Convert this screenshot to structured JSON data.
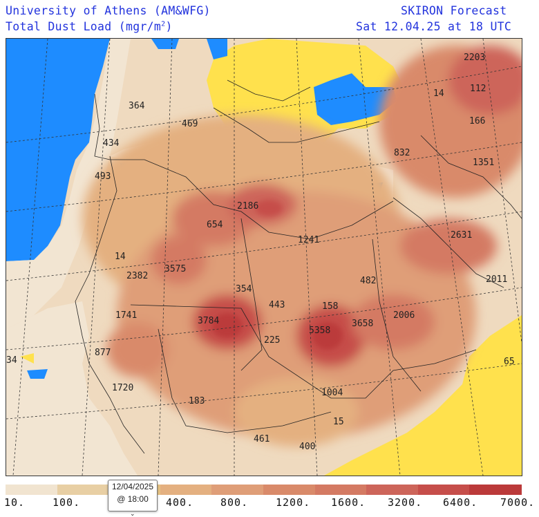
{
  "header": {
    "org": "University of Athens (AM&WFG)",
    "product": "Total Dust Load (mgr/m",
    "product_sup": "2",
    "product_close": ")",
    "title": "SKIRON Forecast",
    "datetime": "Sat 12.04.25 at 18 UTC"
  },
  "map": {
    "labels": [
      "2203",
      "14",
      "112",
      "364",
      "469",
      "166",
      "434",
      "832",
      "1351",
      "493",
      "2186",
      "654",
      "1241",
      "2631",
      "14",
      "3575",
      "2382",
      "354",
      "482",
      "2011",
      "443",
      "158",
      "1741",
      "3784",
      "5358",
      "3658",
      "2006",
      "225",
      "877",
      "34",
      "65",
      "1720",
      "1004",
      "183",
      "15",
      "461",
      "400"
    ]
  },
  "colors": {
    "land": "#f0dcc0",
    "ocean_low": "#f2e6d4",
    "clean": "#ffe14d",
    "water": "#1e8cff"
  },
  "scale": {
    "colors": [
      "#f1e4d0",
      "#e8cfa4",
      "#e6c384",
      "#e4b080",
      "#df9e78",
      "#d98a6a",
      "#d47a63",
      "#cd655a",
      "#c64e4a",
      "#bb3a3a"
    ],
    "labels": [
      "10.",
      "100.",
      "",
      "400.",
      "800.",
      "1200.",
      "1600.",
      "3200.",
      "6400.",
      "7000."
    ]
  },
  "tooltip": {
    "date": "12/04/2025",
    "time": "@ 18:00"
  }
}
